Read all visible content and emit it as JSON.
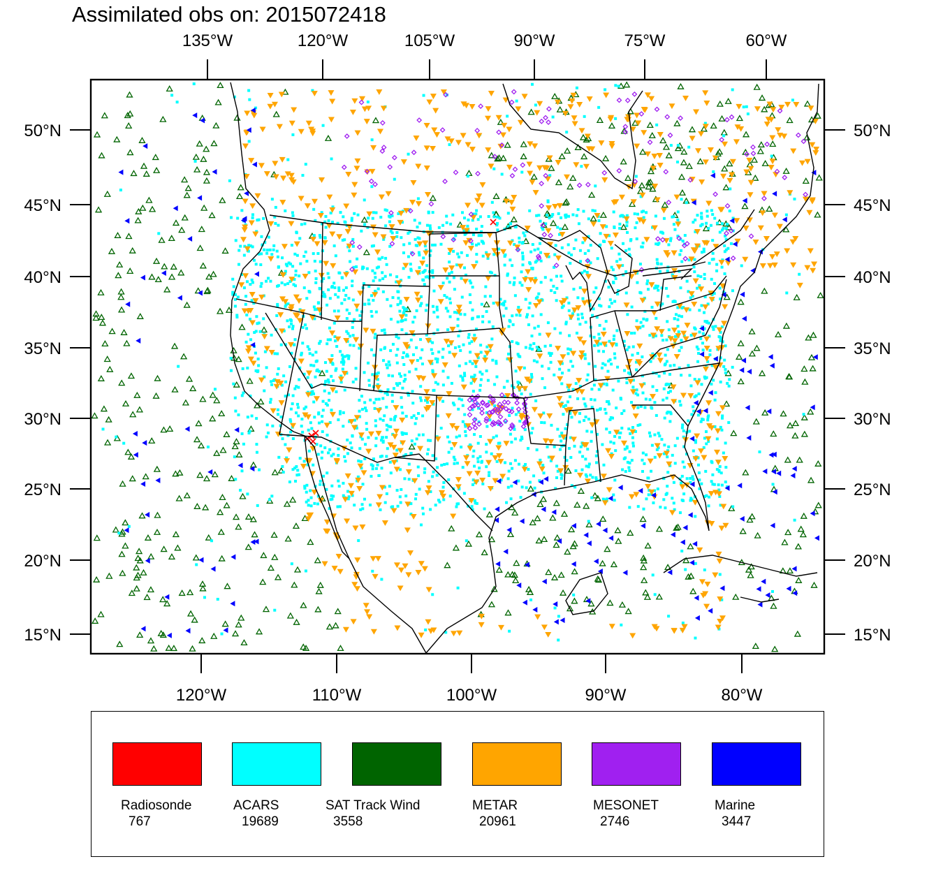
{
  "title": "Assimilated obs on: 2015072418",
  "axes": {
    "top_lon_ticks": [
      "135°W",
      "120°W",
      "105°W",
      "90°W",
      "75°W",
      "60°W"
    ],
    "bottom_lon_ticks": [
      "120°W",
      "110°W",
      "100°W",
      "90°W",
      "80°W"
    ],
    "left_lat_ticks": [
      "50°N",
      "45°N",
      "40°N",
      "35°N",
      "30°N",
      "25°N",
      "20°N",
      "15°N"
    ],
    "right_lat_ticks": [
      "50°N",
      "45°N",
      "40°N",
      "35°N",
      "30°N",
      "25°N",
      "20°N",
      "15°N"
    ]
  },
  "colors": {
    "Radiosonde": "#ff0000",
    "ACARS": "#00ffff",
    "SAT Track Wind": "#006400",
    "METAR": "#ffa500",
    "MESONET": "#a020f0",
    "Marine": "#0000ff"
  },
  "legend": [
    {
      "name": "Radiosonde",
      "count": "767",
      "color": "#ff0000"
    },
    {
      "name": "ACARS",
      "count": "19689",
      "color": "#00ffff"
    },
    {
      "name": "SAT Track Wind",
      "count": "3558",
      "color": "#006400"
    },
    {
      "name": "METAR",
      "count": "20961",
      "color": "#ffa500"
    },
    {
      "name": "MESONET",
      "count": "2746",
      "color": "#a020f0"
    },
    {
      "name": "Marine",
      "count": "3447",
      "color": "#0000ff"
    }
  ]
}
